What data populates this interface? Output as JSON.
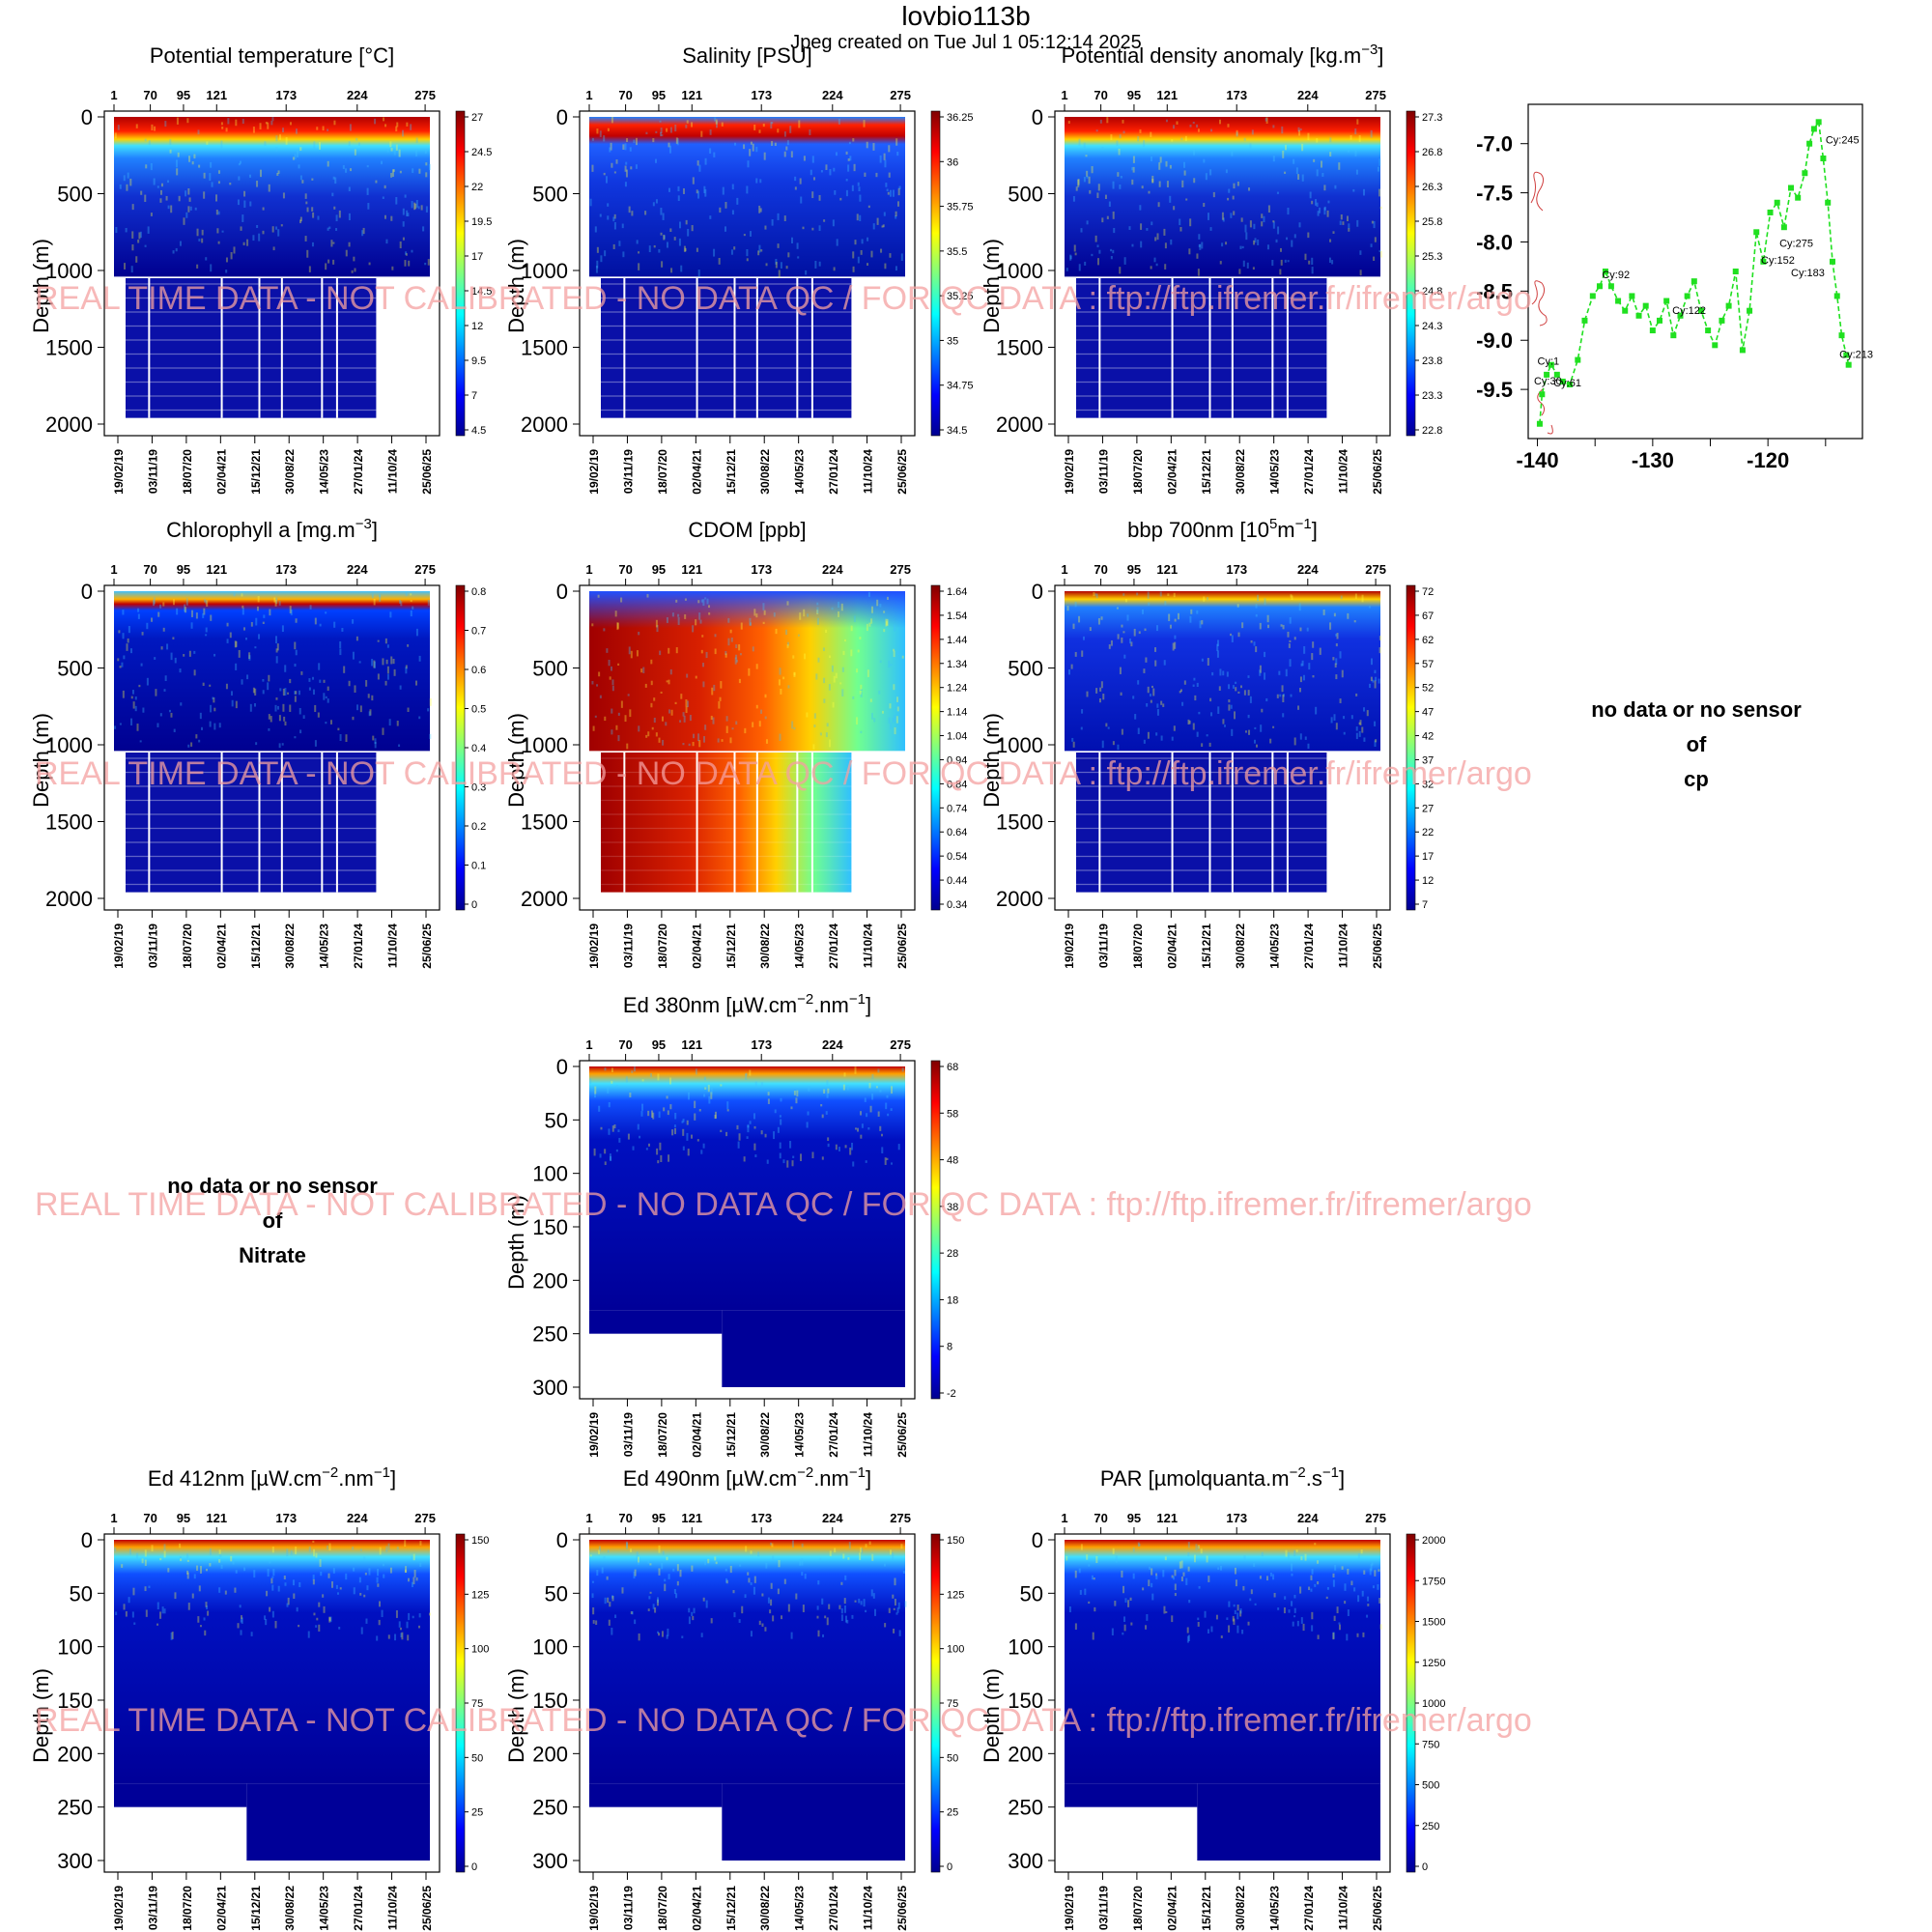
{
  "header": {
    "title": "lovbio113b",
    "subtitle": "Jpeg created on  Tue Jul  1 05:12:14 2025"
  },
  "watermark": "REAL TIME DATA - NOT CALIBRATED - NO DATA QC  /  FOR QC DATA : ftp://ftp.ifremer.fr/ifremer/argo",
  "common": {
    "ylabel": "Depth (m)",
    "cycle_ticks": [
      "1",
      "70",
      "95",
      "121",
      "173",
      "224",
      "275"
    ],
    "date_ticks": [
      "19/02/19",
      "03/11/19",
      "18/07/20",
      "02/04/21",
      "15/12/21",
      "30/08/22",
      "14/05/23",
      "27/01/24",
      "11/10/24",
      "25/06/25"
    ],
    "depth_ticks_deep": [
      "0",
      "500",
      "1000",
      "1500",
      "2000"
    ],
    "depth_ticks_shallow": [
      "0",
      "50",
      "100",
      "150",
      "200",
      "250",
      "300"
    ]
  },
  "no_data_panels": [
    {
      "line1": "no data or no sensor",
      "line2": "of",
      "line3": "cp"
    },
    {
      "line1": "no data or no sensor",
      "line2": "of",
      "line3": "Nitrate"
    }
  ],
  "chart_data": [
    {
      "type": "heatmap",
      "title": "Potential temperature [°C]",
      "ylim": [
        2000,
        0
      ],
      "colorbar": [
        "27",
        "24.5",
        "22",
        "19.5",
        "17",
        "14.5",
        "12",
        "9.5",
        "7",
        "4.5"
      ]
    },
    {
      "type": "heatmap",
      "title": "Salinity [PSU]",
      "ylim": [
        2000,
        0
      ],
      "colorbar": [
        "36.25",
        "36",
        "35.75",
        "35.5",
        "35.25",
        "35",
        "34.75",
        "34.5"
      ]
    },
    {
      "type": "heatmap",
      "title": "Potential density anomaly [kg.m",
      "title_sup": "−3",
      "title_end": "]",
      "ylim": [
        2000,
        0
      ],
      "colorbar": [
        "27.3",
        "26.8",
        "26.3",
        "25.8",
        "25.3",
        "24.8",
        "24.3",
        "23.8",
        "23.3",
        "22.8"
      ]
    },
    {
      "type": "heatmap",
      "title": "Chlorophyll a [mg.m",
      "title_sup": "−3",
      "title_end": "]",
      "ylim": [
        2000,
        0
      ],
      "colorbar": [
        "0.8",
        "0.7",
        "0.6",
        "0.5",
        "0.4",
        "0.3",
        "0.2",
        "0.1",
        "0"
      ]
    },
    {
      "type": "heatmap",
      "title": "CDOM  [ppb]",
      "ylim": [
        2000,
        0
      ],
      "colorbar": [
        "1.64",
        "1.54",
        "1.44",
        "1.34",
        "1.24",
        "1.14",
        "1.04",
        "0.94",
        "0.84",
        "0.74",
        "0.64",
        "0.54",
        "0.44",
        "0.34"
      ]
    },
    {
      "type": "heatmap",
      "title": "bbp 700nm [10",
      "title_sup": "5",
      "title_mid": "m",
      "title_sup2": "−1",
      "title_end": "]",
      "ylim": [
        2000,
        0
      ],
      "colorbar": [
        "72",
        "67",
        "62",
        "57",
        "52",
        "47",
        "42",
        "37",
        "32",
        "27",
        "22",
        "17",
        "12",
        "7"
      ]
    },
    {
      "type": "heatmap",
      "title": "Ed 380nm [µW.cm",
      "title_sup": "−2",
      "title_mid": ".nm",
      "title_sup2": "−1",
      "title_end": "]",
      "ylim": [
        300,
        0
      ],
      "colorbar": [
        "68",
        "58",
        "48",
        "38",
        "28",
        "18",
        "8",
        "-2"
      ]
    },
    {
      "type": "heatmap",
      "title": "Ed 412nm [µW.cm",
      "title_sup": "−2",
      "title_mid": ".nm",
      "title_sup2": "−1",
      "title_end": "]",
      "ylim": [
        300,
        0
      ],
      "colorbar": [
        "150",
        "125",
        "100",
        "75",
        "50",
        "25",
        "0"
      ]
    },
    {
      "type": "heatmap",
      "title": "Ed 490nm [µW.cm",
      "title_sup": "−2",
      "title_mid": ".nm",
      "title_sup2": "−1",
      "title_end": "]",
      "ylim": [
        300,
        0
      ],
      "colorbar": [
        "150",
        "125",
        "100",
        "75",
        "50",
        "25",
        "0"
      ]
    },
    {
      "type": "heatmap",
      "title": "PAR [µmolquanta.m",
      "title_sup": "−2",
      "title_mid": ".s",
      "title_sup2": "−1",
      "title_end": "]",
      "ylim": [
        300,
        0
      ],
      "colorbar": [
        "2000",
        "1750",
        "1500",
        "1250",
        "1000",
        "750",
        "500",
        "250",
        "0"
      ]
    },
    {
      "type": "line",
      "title": "",
      "xlabel": "",
      "ylabel": "",
      "xlim": [
        -140.8,
        -111.8
      ],
      "ylim": [
        -10.0,
        -6.6
      ],
      "xticks": [
        "-140",
        "-130",
        "-120"
      ],
      "yticks": [
        "-7.0",
        "-7.5",
        "-8.0",
        "-8.5",
        "-9.0",
        "-9.5"
      ],
      "series": [
        {
          "x": [
            -139.8,
            -139.6,
            -139.2,
            -138.8,
            -138.3,
            -137.8,
            -137.2,
            -136.5,
            -135.9,
            -135.2,
            -134.6,
            -134.1,
            -133.6,
            -133.0,
            -132.4,
            -131.8,
            -131.2,
            -130.6,
            -130.0,
            -129.4,
            -128.8,
            -128.2,
            -127.6,
            -127.0,
            -126.4,
            -125.8,
            -125.2,
            -124.6,
            -124.0,
            -123.4,
            -122.8,
            -122.2,
            -121.6,
            -121.0,
            -120.4,
            -119.8,
            -119.2,
            -118.6,
            -118.0,
            -117.4,
            -116.8,
            -116.4,
            -116.0,
            -115.6,
            -115.2,
            -114.8,
            -114.4,
            -114.0,
            -113.6,
            -113.2,
            -113.0
          ],
          "y": [
            -9.85,
            -9.55,
            -9.35,
            -9.25,
            -9.35,
            -9.42,
            -9.45,
            -9.2,
            -8.8,
            -8.55,
            -8.45,
            -8.3,
            -8.45,
            -8.6,
            -8.7,
            -8.55,
            -8.75,
            -8.65,
            -8.9,
            -8.8,
            -8.6,
            -8.95,
            -8.75,
            -8.55,
            -8.4,
            -8.7,
            -8.9,
            -9.05,
            -8.8,
            -8.65,
            -8.3,
            -9.1,
            -8.7,
            -7.9,
            -8.2,
            -7.7,
            -7.6,
            -7.85,
            -7.45,
            -7.55,
            -7.3,
            -7.0,
            -6.85,
            -6.78,
            -7.15,
            -7.6,
            -8.2,
            -8.55,
            -8.95,
            -9.15,
            -9.25
          ]
        }
      ],
      "annotations": [
        {
          "text": "Cy:245",
          "x": -115.0,
          "y": -7.0
        },
        {
          "text": "Cy:275",
          "x": -119.0,
          "y": -8.05
        },
        {
          "text": "Cy:152",
          "x": -120.6,
          "y": -8.22
        },
        {
          "text": "Cy:183",
          "x": -118.0,
          "y": -8.35
        },
        {
          "text": "Cy:92",
          "x": -134.4,
          "y": -8.37
        },
        {
          "text": "Cy:122",
          "x": -128.3,
          "y": -8.73
        },
        {
          "text": "Cy:213",
          "x": -113.8,
          "y": -9.18
        },
        {
          "text": "Cy:1",
          "x": -140.0,
          "y": -9.25
        },
        {
          "text": "Cy:30",
          "x": -140.3,
          "y": -9.45
        },
        {
          "text": "Cy:61",
          "x": -138.6,
          "y": -9.47
        }
      ]
    }
  ]
}
